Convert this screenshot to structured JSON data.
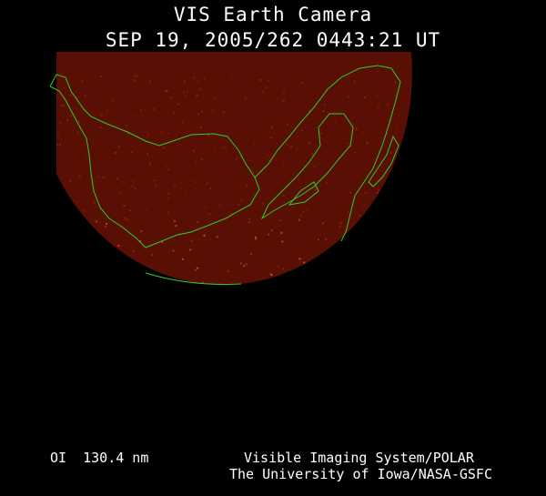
{
  "header": {
    "title": "VIS Earth Camera",
    "timestamp": "SEP 19, 2005/262 0443:21 UT"
  },
  "footer": {
    "filter": "OI  130.4 nm",
    "credit_line1": "Visible Imaging System/POLAR",
    "credit_line2": "The University of Iowa/NASA-GSFC"
  },
  "colors": {
    "background": "#000000",
    "earth_disk": "#5a0f05",
    "coastline": "#2ecc2e",
    "aurora": "#c85a1e"
  }
}
